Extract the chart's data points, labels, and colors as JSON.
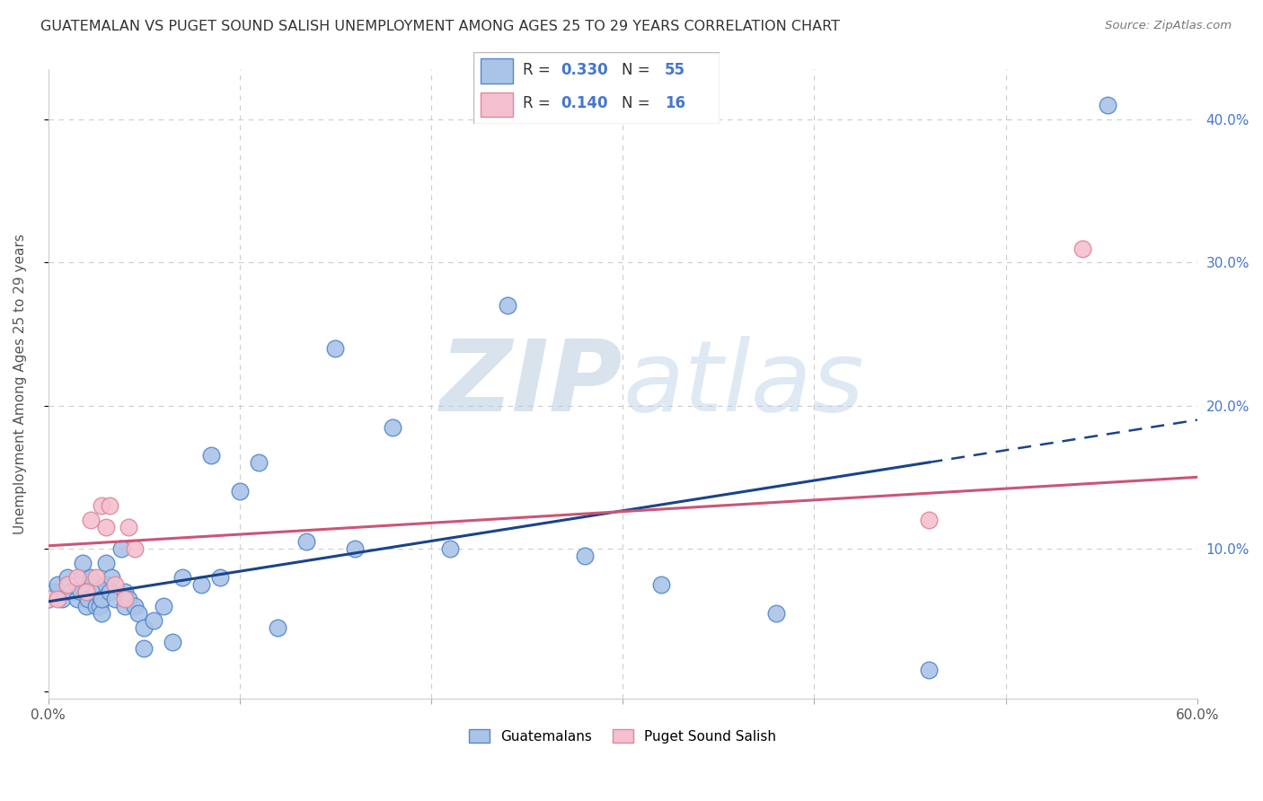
{
  "title": "GUATEMALAN VS PUGET SOUND SALISH UNEMPLOYMENT AMONG AGES 25 TO 29 YEARS CORRELATION CHART",
  "source": "Source: ZipAtlas.com",
  "ylabel": "Unemployment Among Ages 25 to 29 years",
  "xlim": [
    0,
    0.6
  ],
  "ylim": [
    -0.005,
    0.435
  ],
  "xticks": [
    0.0,
    0.1,
    0.2,
    0.3,
    0.4,
    0.5,
    0.6
  ],
  "yticks": [
    0.0,
    0.1,
    0.2,
    0.3,
    0.4
  ],
  "xtick_labels": [
    "0.0%",
    "",
    "",
    "",
    "",
    "",
    "60.0%"
  ],
  "ytick_labels_right": [
    "",
    "10.0%",
    "20.0%",
    "30.0%",
    "40.0%"
  ],
  "background_color": "#ffffff",
  "grid_color": "#cccccc",
  "watermark_zip": "ZIP",
  "watermark_atlas": "atlas",
  "watermark_color": "#c8d8ee",
  "series1_color": "#aac4e8",
  "series1_edge": "#5588cc",
  "series2_color": "#f5c0d0",
  "series2_edge": "#dd8899",
  "trend1_color": "#1a4488",
  "trend2_color": "#cc5577",
  "trend1_solid_end": 0.46,
  "trend1_y_start": 0.063,
  "trend1_y_end": 0.19,
  "trend2_y_start": 0.102,
  "trend2_y_end": 0.15,
  "legend_value_color": "#4477cc",
  "legend_text_color": "#333333",
  "legend_box_color1": "#aac4e8",
  "legend_box_edge1": "#5588cc",
  "legend_box_color2": "#f5c0d0",
  "legend_box_edge2": "#dd8899",
  "blue_points_x": [
    0.0,
    0.003,
    0.005,
    0.007,
    0.01,
    0.01,
    0.012,
    0.015,
    0.015,
    0.017,
    0.018,
    0.018,
    0.02,
    0.02,
    0.021,
    0.022,
    0.025,
    0.025,
    0.027,
    0.028,
    0.028,
    0.03,
    0.03,
    0.032,
    0.033,
    0.035,
    0.038,
    0.04,
    0.04,
    0.042,
    0.045,
    0.047,
    0.05,
    0.05,
    0.055,
    0.06,
    0.065,
    0.07,
    0.08,
    0.085,
    0.09,
    0.1,
    0.11,
    0.12,
    0.135,
    0.15,
    0.16,
    0.18,
    0.21,
    0.24,
    0.28,
    0.32,
    0.38,
    0.46,
    0.553
  ],
  "blue_points_y": [
    0.065,
    0.07,
    0.075,
    0.065,
    0.075,
    0.08,
    0.07,
    0.065,
    0.075,
    0.07,
    0.08,
    0.09,
    0.06,
    0.07,
    0.065,
    0.08,
    0.06,
    0.07,
    0.06,
    0.055,
    0.065,
    0.075,
    0.09,
    0.07,
    0.08,
    0.065,
    0.1,
    0.06,
    0.07,
    0.065,
    0.06,
    0.055,
    0.03,
    0.045,
    0.05,
    0.06,
    0.035,
    0.08,
    0.075,
    0.165,
    0.08,
    0.14,
    0.16,
    0.045,
    0.105,
    0.24,
    0.1,
    0.185,
    0.1,
    0.27,
    0.095,
    0.075,
    0.055,
    0.015,
    0.41
  ],
  "pink_points_x": [
    0.0,
    0.005,
    0.01,
    0.015,
    0.02,
    0.022,
    0.025,
    0.028,
    0.03,
    0.032,
    0.035,
    0.04,
    0.042,
    0.045,
    0.46,
    0.54
  ],
  "pink_points_y": [
    0.065,
    0.065,
    0.075,
    0.08,
    0.07,
    0.12,
    0.08,
    0.13,
    0.115,
    0.13,
    0.075,
    0.065,
    0.115,
    0.1,
    0.12,
    0.31
  ]
}
